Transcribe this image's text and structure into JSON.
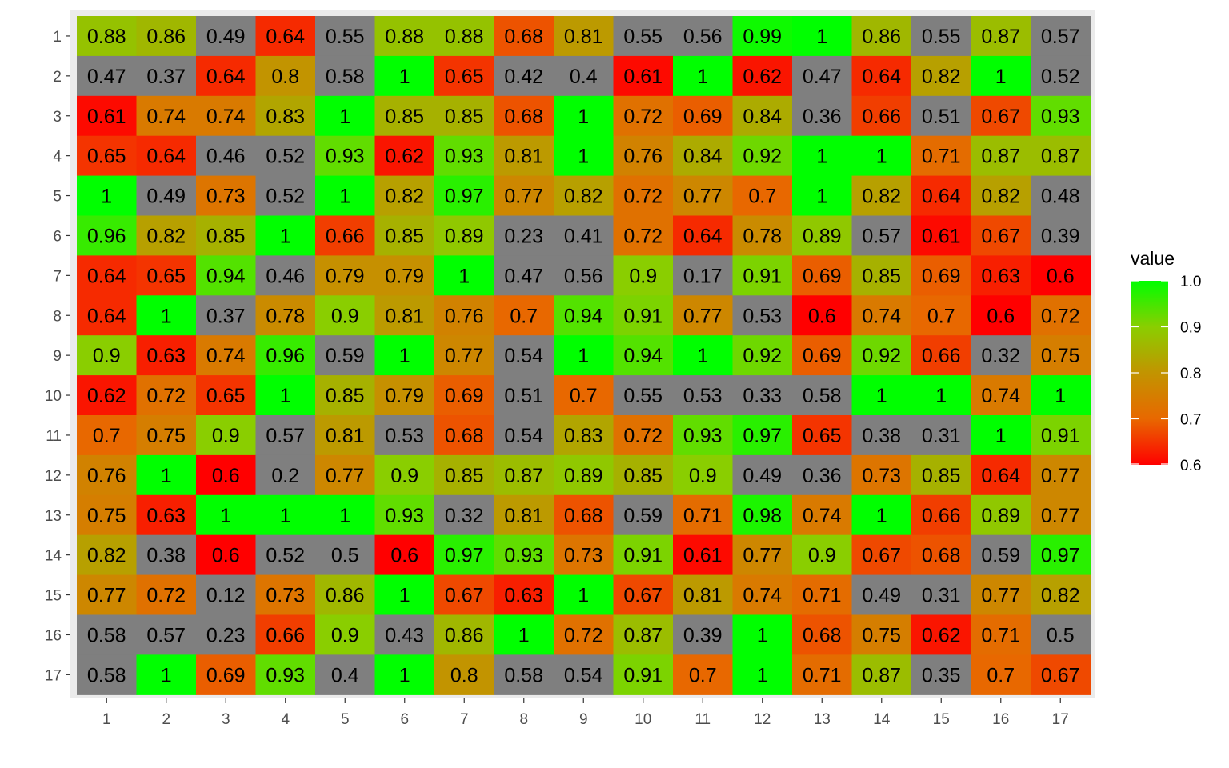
{
  "chart_data": {
    "type": "heatmap",
    "title": "",
    "xlabel": "",
    "ylabel": "",
    "x_categories": [
      "1",
      "2",
      "3",
      "4",
      "5",
      "6",
      "7",
      "8",
      "9",
      "10",
      "11",
      "12",
      "13",
      "14",
      "15",
      "16",
      "17"
    ],
    "y_categories": [
      "1",
      "2",
      "3",
      "4",
      "5",
      "6",
      "7",
      "8",
      "9",
      "10",
      "11",
      "12",
      "13",
      "14",
      "15",
      "16",
      "17"
    ],
    "values": [
      [
        0.88,
        0.86,
        0.49,
        0.64,
        0.55,
        0.88,
        0.88,
        0.68,
        0.81,
        0.55,
        0.56,
        0.99,
        1,
        0.86,
        0.55,
        0.87,
        0.57
      ],
      [
        0.47,
        0.37,
        0.64,
        0.8,
        0.58,
        1,
        0.65,
        0.42,
        0.4,
        0.61,
        1,
        0.62,
        0.47,
        0.64,
        0.82,
        1,
        0.52
      ],
      [
        0.61,
        0.74,
        0.74,
        0.83,
        1,
        0.85,
        0.85,
        0.68,
        1,
        0.72,
        0.69,
        0.84,
        0.36,
        0.66,
        0.51,
        0.67,
        0.93
      ],
      [
        0.65,
        0.64,
        0.46,
        0.52,
        0.93,
        0.62,
        0.93,
        0.81,
        1,
        0.76,
        0.84,
        0.92,
        1,
        1,
        0.71,
        0.87,
        0.87
      ],
      [
        1,
        0.49,
        0.73,
        0.52,
        1,
        0.82,
        0.97,
        0.77,
        0.82,
        0.72,
        0.77,
        0.7,
        1,
        0.82,
        0.64,
        0.82,
        0.48
      ],
      [
        0.96,
        0.82,
        0.85,
        1,
        0.66,
        0.85,
        0.89,
        0.23,
        0.41,
        0.72,
        0.64,
        0.78,
        0.89,
        0.57,
        0.61,
        0.67,
        0.39
      ],
      [
        0.64,
        0.65,
        0.94,
        0.46,
        0.79,
        0.79,
        1,
        0.47,
        0.56,
        0.9,
        0.17,
        0.91,
        0.69,
        0.85,
        0.69,
        0.63,
        0.6
      ],
      [
        0.64,
        1,
        0.37,
        0.78,
        0.9,
        0.81,
        0.76,
        0.7,
        0.94,
        0.91,
        0.77,
        0.53,
        0.6,
        0.74,
        0.7,
        0.6,
        0.72
      ],
      [
        0.9,
        0.63,
        0.74,
        0.96,
        0.59,
        1,
        0.77,
        0.54,
        1,
        0.94,
        1,
        0.92,
        0.69,
        0.92,
        0.66,
        0.32,
        0.75
      ],
      [
        0.62,
        0.72,
        0.65,
        1,
        0.85,
        0.79,
        0.69,
        0.51,
        0.7,
        0.55,
        0.53,
        0.33,
        0.58,
        1,
        1,
        0.74,
        1
      ],
      [
        0.7,
        0.75,
        0.9,
        0.57,
        0.81,
        0.53,
        0.68,
        0.54,
        0.83,
        0.72,
        0.93,
        0.97,
        0.65,
        0.38,
        0.31,
        1,
        0.91
      ],
      [
        0.76,
        1,
        0.6,
        0.2,
        0.77,
        0.9,
        0.85,
        0.87,
        0.89,
        0.85,
        0.9,
        0.49,
        0.36,
        0.73,
        0.85,
        0.64,
        0.77
      ],
      [
        0.75,
        0.63,
        1,
        1,
        1,
        0.93,
        0.32,
        0.81,
        0.68,
        0.59,
        0.71,
        0.98,
        0.74,
        1,
        0.66,
        0.89,
        0.77
      ],
      [
        0.82,
        0.38,
        0.6,
        0.52,
        0.5,
        0.6,
        0.97,
        0.93,
        0.73,
        0.91,
        0.61,
        0.77,
        0.9,
        0.67,
        0.68,
        0.59,
        0.97
      ],
      [
        0.77,
        0.72,
        0.12,
        0.73,
        0.86,
        1,
        0.67,
        0.63,
        1,
        0.67,
        0.81,
        0.74,
        0.71,
        0.49,
        0.31,
        0.77,
        0.82
      ],
      [
        0.58,
        0.57,
        0.23,
        0.66,
        0.9,
        0.43,
        0.86,
        1,
        0.72,
        0.87,
        0.39,
        1,
        0.68,
        0.75,
        0.62,
        0.71,
        0.5
      ],
      [
        0.58,
        1,
        0.69,
        0.93,
        0.4,
        1,
        0.8,
        0.58,
        0.54,
        0.91,
        0.7,
        1,
        0.71,
        0.87,
        0.35,
        0.7,
        0.67
      ]
    ],
    "color_scale": {
      "limits": [
        0.6,
        1.0
      ],
      "low_color": "#ff0000",
      "high_color": "#00ff00",
      "out_of_range_color": "#7f7f7f",
      "panel_background": "#ebebeb"
    },
    "legend": {
      "title": "value",
      "placement": "right",
      "ticks": [
        "1.0",
        "0.9",
        "0.8",
        "0.7",
        "0.6"
      ]
    }
  }
}
